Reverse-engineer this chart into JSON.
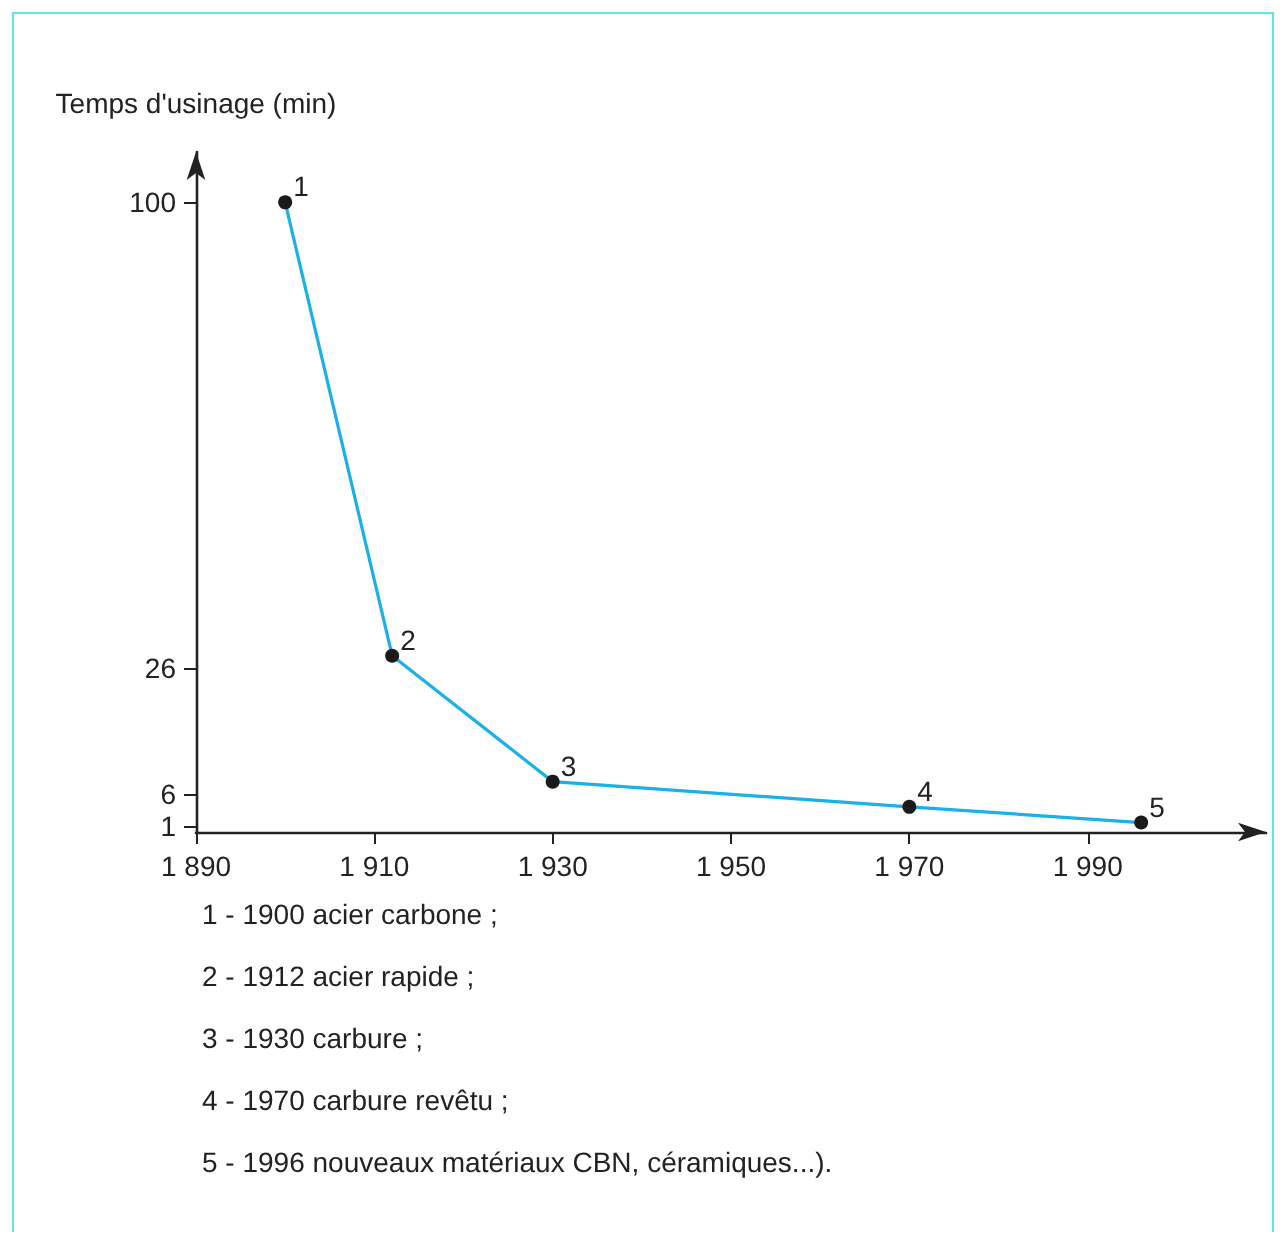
{
  "chart_data": {
    "type": "line",
    "ylabel": "Temps d'usinage (min)",
    "x": [
      1900,
      1912,
      1930,
      1970,
      1996
    ],
    "series": [
      {
        "color": "#1ab0e8",
        "values": [
          100,
          28,
          8,
          4,
          1.5
        ]
      }
    ],
    "marker": "circle",
    "line_style": "solid",
    "grid": false,
    "xlim": [
      1890,
      2010
    ],
    "xticks": [
      {
        "value": 1890,
        "label": "1 890"
      },
      {
        "value": 1910,
        "label": "1 910"
      },
      {
        "value": 1930,
        "label": "1 930"
      },
      {
        "value": 1950,
        "label": "1 950"
      },
      {
        "value": 1970,
        "label": "1 970"
      },
      {
        "value": 1990,
        "label": "1 990"
      }
    ],
    "ylim": [
      0,
      108
    ],
    "yticks": [
      1,
      6,
      26,
      100
    ],
    "annotations": [
      {
        "text": "1",
        "x": 1900,
        "y": 100
      },
      {
        "text": "2",
        "x": 1912,
        "y": 28
      },
      {
        "text": "3",
        "x": 1930,
        "y": 8
      },
      {
        "text": "4",
        "x": 1970,
        "y": 4
      },
      {
        "text": "5",
        "x": 1996,
        "y": 1.5
      },
      "1 - 1900  acier carbone ;",
      "2 - 1912  acier rapide ;",
      "3 - 1930  carbure ;",
      "4 - 1970  carbure revêtu ;",
      "5 - 1996  nouveaux matériaux CBN, céramiques...)."
    ]
  }
}
